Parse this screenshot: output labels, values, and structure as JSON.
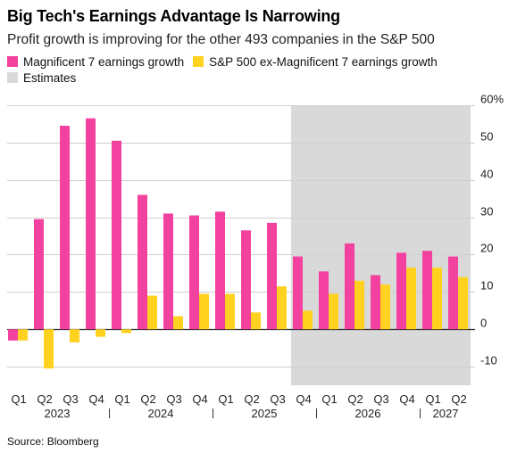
{
  "title": "Big Tech's Earnings Advantage Is Narrowing",
  "subtitle": "Profit growth is improving for the other 493 companies in the S&P 500",
  "source": "Source: Bloomberg",
  "colors": {
    "mag7": "#f2419e",
    "ex_mag7": "#ffd21f",
    "estimates": "#d9d9d9",
    "grid": "#cfcfcf",
    "axis": "#222222"
  },
  "chart_data": {
    "type": "bar",
    "categories": [
      "Q1",
      "Q2",
      "Q3",
      "Q4",
      "Q1",
      "Q2",
      "Q3",
      "Q4",
      "Q1",
      "Q2",
      "Q3",
      "Q4",
      "Q1",
      "Q2",
      "Q3",
      "Q4",
      "Q1",
      "Q2"
    ],
    "years": [
      {
        "label": "2023",
        "start": 0,
        "end": 3
      },
      {
        "label": "2024",
        "start": 4,
        "end": 7
      },
      {
        "label": "2025",
        "start": 8,
        "end": 11
      },
      {
        "label": "2026",
        "start": 12,
        "end": 15
      },
      {
        "label": "2027",
        "start": 16,
        "end": 17
      }
    ],
    "series": [
      {
        "name": "Magnificent 7 earnings growth",
        "values": [
          -3,
          29.5,
          54.5,
          56.5,
          50.5,
          36,
          31,
          30.5,
          31.5,
          26.5,
          28.5,
          19.5,
          15.5,
          23,
          14.5,
          20.5,
          21,
          19.5
        ]
      },
      {
        "name": "S&P 500 ex-Magnificent 7 earnings growth",
        "values": [
          -3,
          -10.5,
          -3.5,
          -2,
          -1,
          9,
          3.5,
          9.5,
          9.5,
          4.5,
          11.5,
          5,
          9.5,
          13,
          12,
          16.5,
          16.5,
          14
        ]
      }
    ],
    "estimates": {
      "label": "Estimates",
      "start_index": 11,
      "end_index": 17
    },
    "ylim": [
      -15,
      60
    ],
    "yticks": [
      -10,
      0,
      10,
      20,
      30,
      40,
      50,
      60
    ],
    "ytick_labels": [
      "-10",
      "0",
      "10",
      "20",
      "30",
      "40",
      "50",
      "60%"
    ],
    "grid": true,
    "y_axis_side": "right",
    "legend_position": "top-left"
  }
}
